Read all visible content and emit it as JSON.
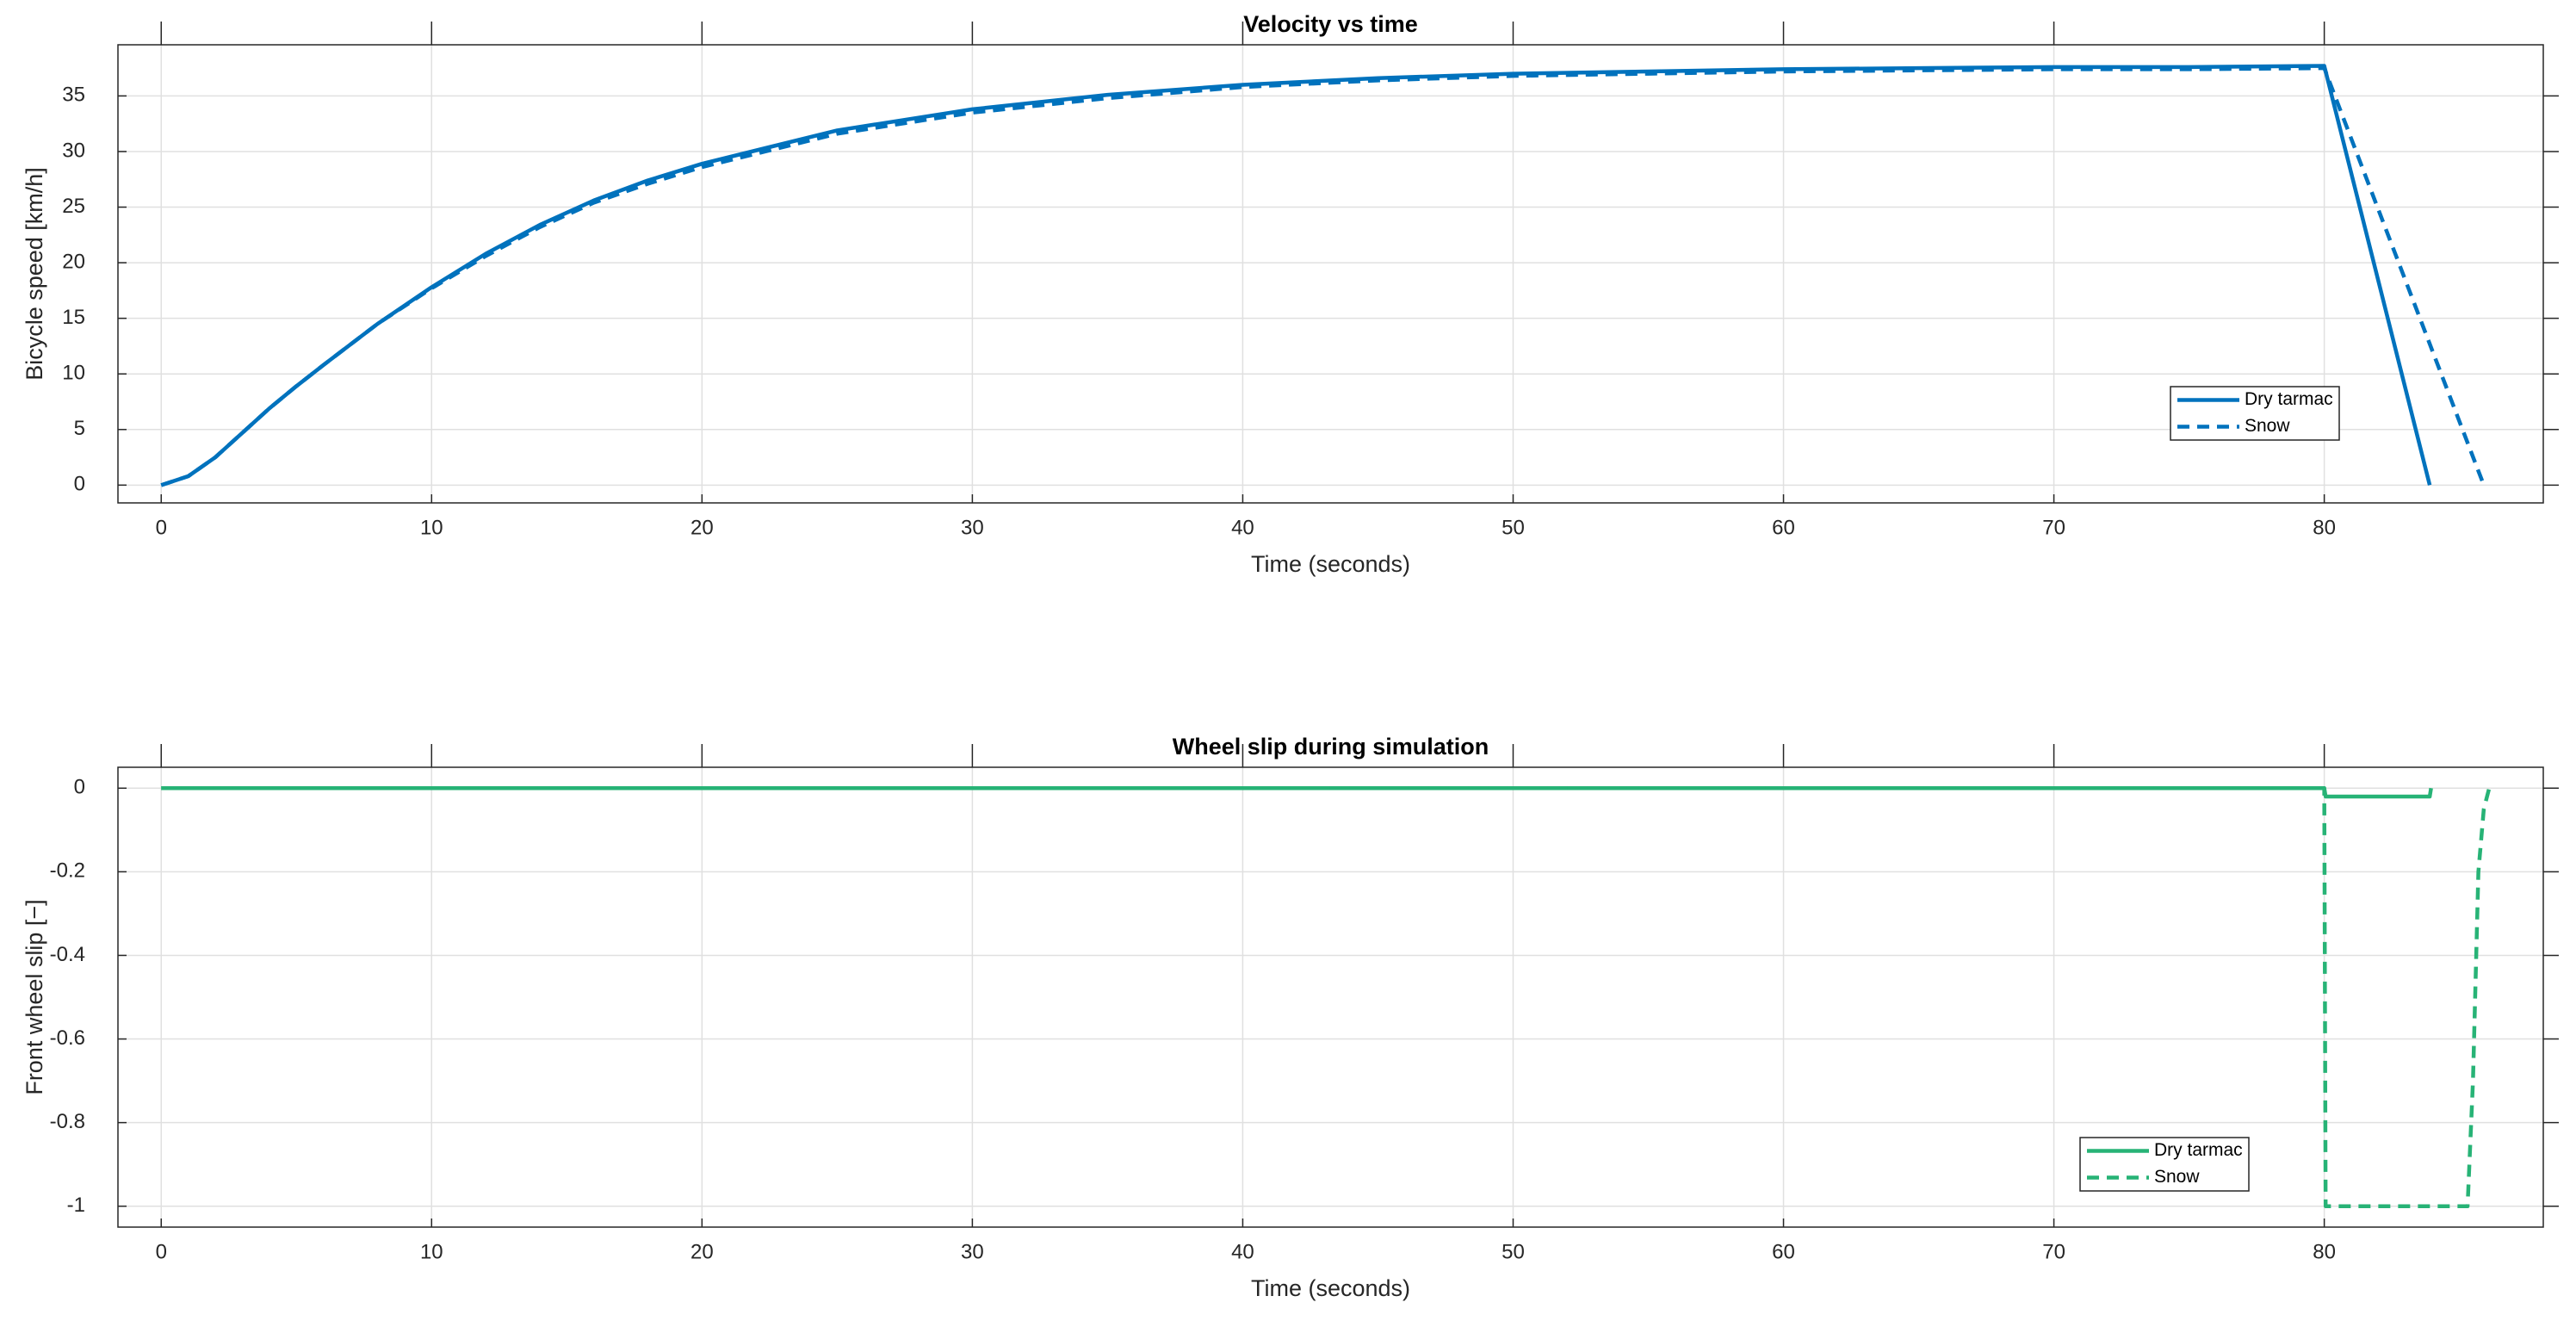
{
  "chart_data": [
    {
      "type": "line",
      "title": "Velocity vs time",
      "x_label": "Time (seconds)",
      "y_label": "Bicycle speed [km/h]",
      "x": [
        0,
        1,
        2,
        3,
        4,
        5,
        6,
        8,
        10,
        12,
        14,
        16,
        18,
        20,
        25,
        30,
        35,
        40,
        45,
        50,
        55,
        60,
        65,
        70,
        75,
        80,
        83.9,
        85.9
      ],
      "series": [
        {
          "name": "Dry tarmac",
          "color": "#0072bd",
          "linestyle": "solid",
          "values": [
            0,
            0.8,
            2.5,
            4.7,
            6.9,
            8.9,
            10.8,
            14.5,
            17.8,
            20.8,
            23.4,
            25.6,
            27.4,
            28.9,
            31.9,
            33.8,
            35.1,
            36.0,
            36.6,
            37.0,
            37.2,
            37.4,
            37.5,
            37.6,
            37.6,
            37.7,
            0,
            null
          ]
        },
        {
          "name": "Snow",
          "color": "#0072bd",
          "linestyle": "dashed",
          "values": [
            0,
            0.8,
            2.5,
            4.7,
            6.9,
            8.9,
            10.8,
            14.5,
            17.7,
            20.6,
            23.2,
            25.4,
            27.1,
            28.6,
            31.6,
            33.5,
            34.8,
            35.8,
            36.4,
            36.8,
            37.0,
            37.2,
            37.3,
            37.4,
            37.4,
            37.5,
            12.7,
            0
          ]
        }
      ],
      "xlim": [
        -1.6,
        88.1
      ],
      "ylim": [
        -1.6,
        39.6
      ],
      "xticks": [
        0,
        10,
        20,
        30,
        40,
        50,
        60,
        70,
        80
      ],
      "yticks": [
        0,
        5,
        10,
        15,
        20,
        25,
        30,
        35
      ],
      "grid": true,
      "legend_position": "lower right"
    },
    {
      "type": "line",
      "title": "Wheel slip during simulation",
      "x_label": "Time (seconds)",
      "y_label": "Front wheel slip [−]",
      "x": [
        0,
        80,
        80.05,
        83.9,
        83.95,
        85.3,
        85.5,
        85.7,
        85.9,
        86.1
      ],
      "series": [
        {
          "name": "Dry tarmac",
          "color": "#27b376",
          "linestyle": "solid",
          "values": [
            0,
            0,
            -0.02,
            -0.02,
            0,
            null,
            null,
            null,
            null,
            null
          ]
        },
        {
          "name": "Snow",
          "color": "#27b376",
          "linestyle": "dashed",
          "values": [
            0,
            0,
            -1,
            -1,
            -1,
            -1,
            -0.7,
            -0.2,
            -0.05,
            0
          ]
        }
      ],
      "xlim": [
        -1.6,
        88.1
      ],
      "ylim": [
        -1.05,
        0.05
      ],
      "xticks": [
        0,
        10,
        20,
        30,
        40,
        50,
        60,
        70,
        80
      ],
      "yticks": [
        0,
        -0.2,
        -0.4,
        -0.6,
        -0.8,
        -1
      ],
      "grid": true,
      "legend_position": "lower right"
    }
  ]
}
